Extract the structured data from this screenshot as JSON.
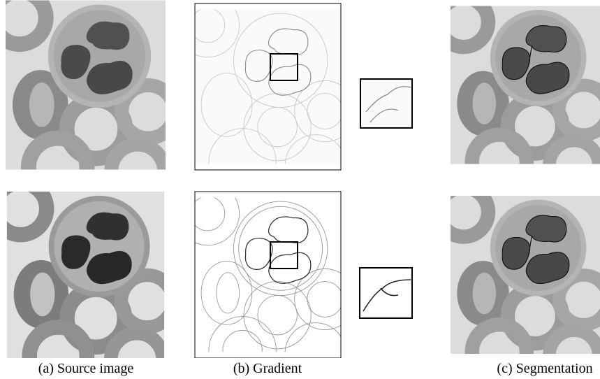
{
  "captions": {
    "a": "(a) Source image",
    "b": "(b) Gradient",
    "c": "(c) Segmentation"
  }
}
